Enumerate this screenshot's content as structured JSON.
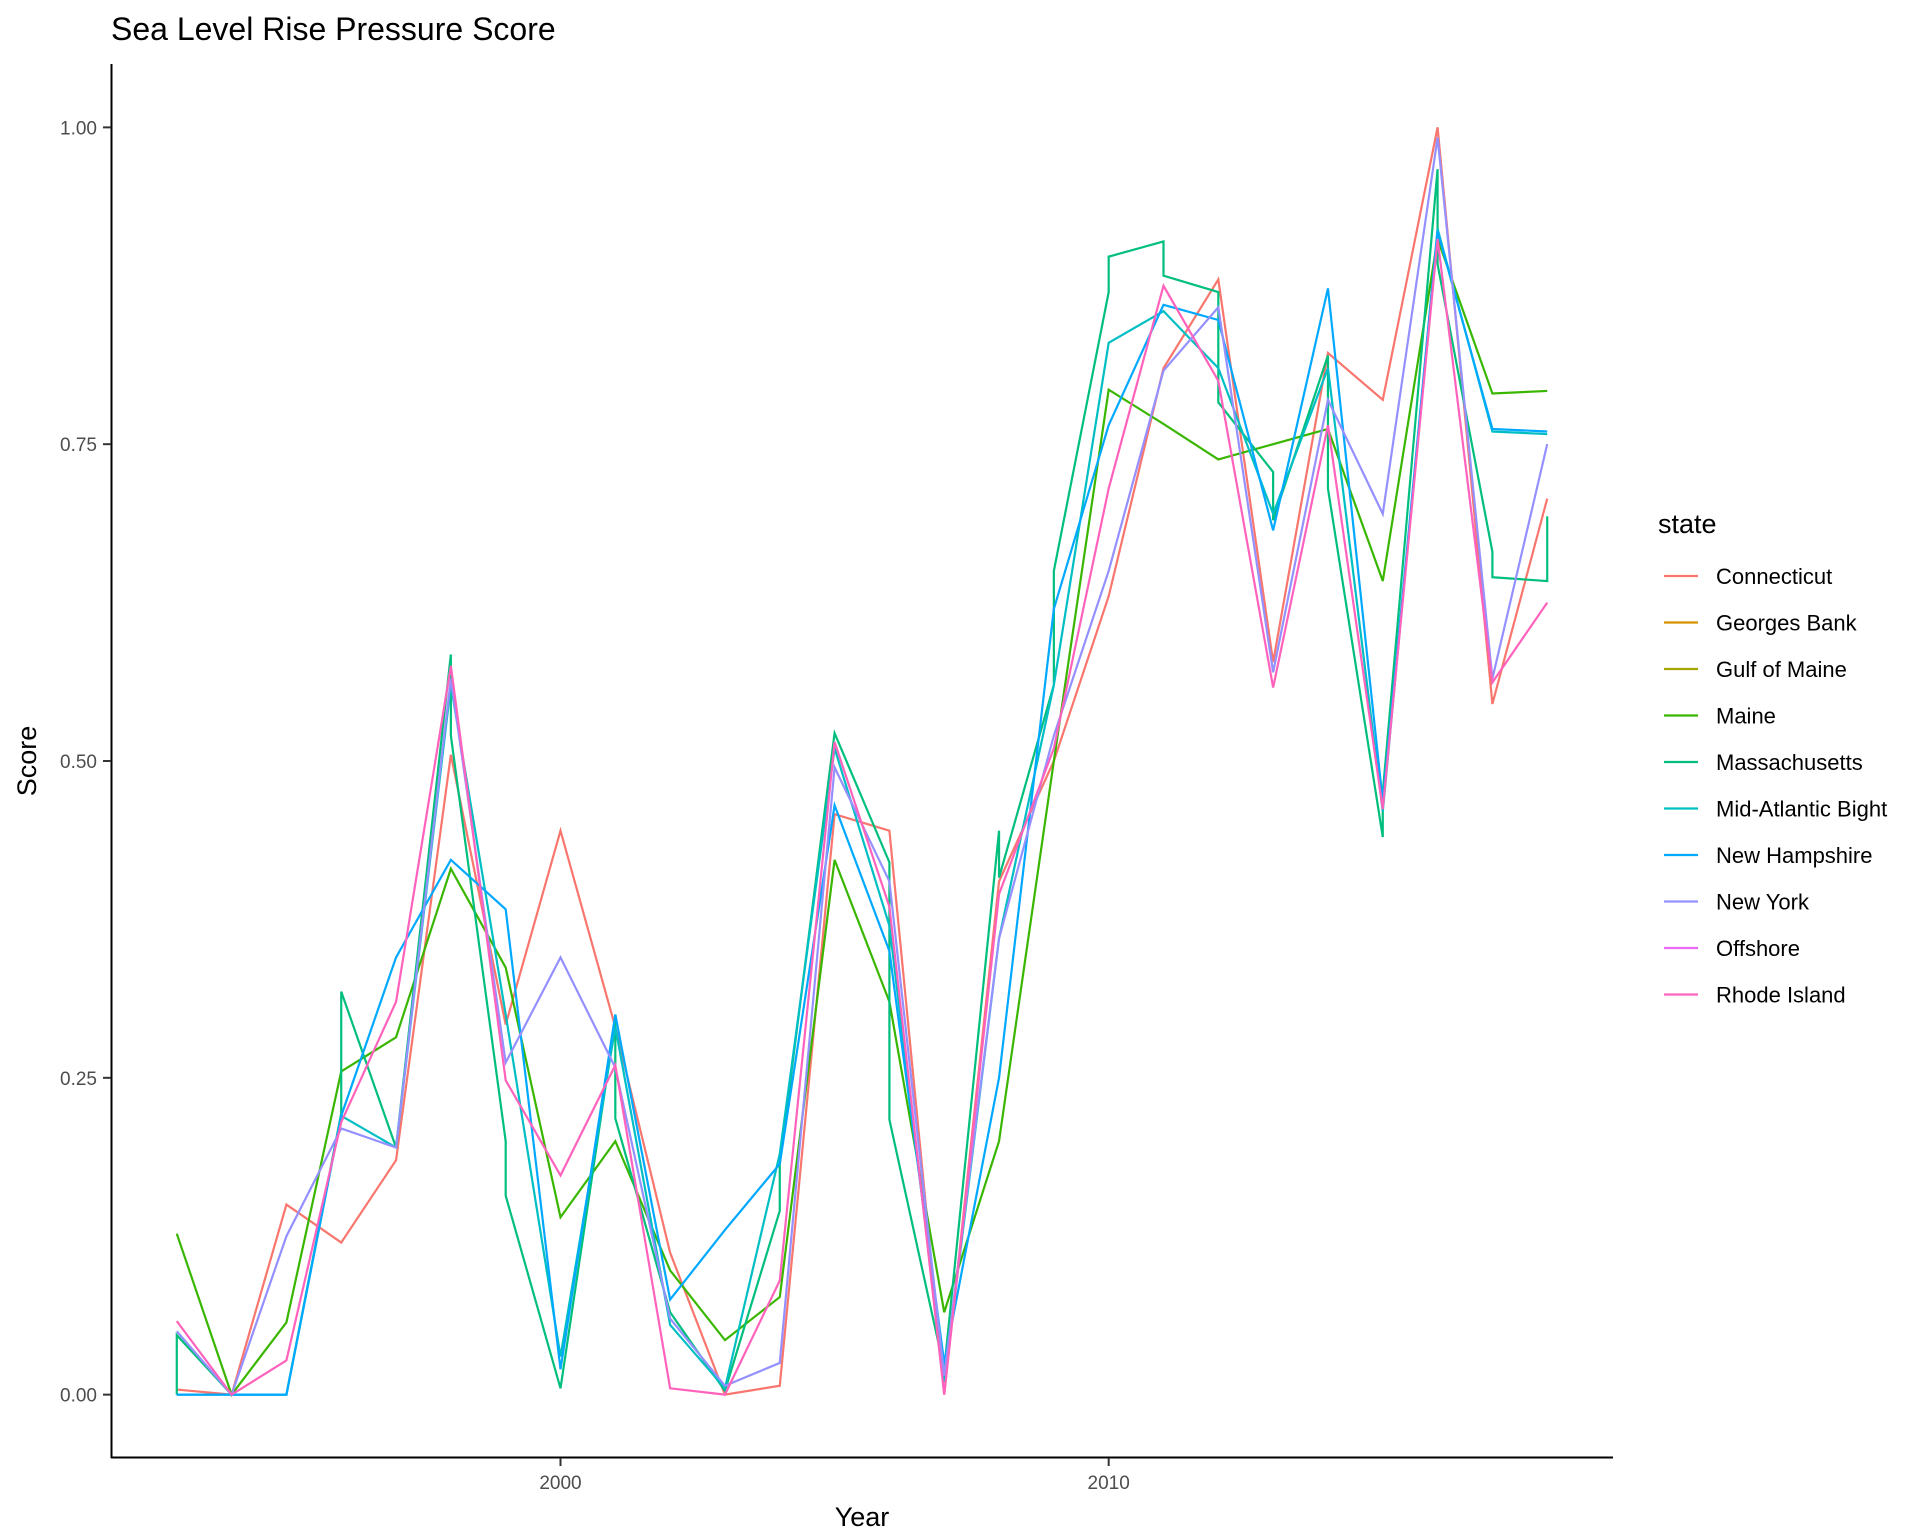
{
  "chart_data": {
    "type": "line",
    "title": "Sea Level Rise Pressure Score",
    "xlabel": "Year",
    "ylabel": "Score",
    "xlim": [
      1991.8,
      2019.2
    ],
    "ylim": [
      -0.05,
      1.05
    ],
    "x_ticks": [
      2000,
      2010
    ],
    "y_ticks": [
      0.0,
      0.25,
      0.5,
      0.75,
      1.0
    ],
    "y_tick_labels": [
      "0.00",
      "0.25",
      "0.50",
      "0.75",
      "1.00"
    ],
    "grid": false,
    "legend": {
      "title": "state",
      "position": "right"
    },
    "series": [
      {
        "name": "Connecticut",
        "color": "#F8766D",
        "points": [
          [
            1993,
            0.004
          ],
          [
            1994,
            0.0
          ],
          [
            1995,
            0.15
          ],
          [
            1996,
            0.12
          ],
          [
            1997,
            0.185
          ],
          [
            1998,
            0.505
          ],
          [
            1999,
            0.292
          ],
          [
            2000,
            0.445
          ],
          [
            2001,
            0.29
          ],
          [
            2002,
            0.112
          ],
          [
            2003,
            0.0
          ],
          [
            2004,
            0.007
          ],
          [
            2005,
            0.458
          ],
          [
            2006,
            0.445
          ],
          [
            2007,
            0.0
          ],
          [
            2008,
            0.405
          ],
          [
            2009,
            0.5
          ],
          [
            2010,
            0.63
          ],
          [
            2011,
            0.81
          ],
          [
            2012,
            0.88
          ],
          [
            2013,
            0.578
          ],
          [
            2014,
            0.822
          ],
          [
            2015,
            0.785
          ],
          [
            2016,
            1.0
          ],
          [
            2017,
            0.545
          ],
          [
            2018,
            0.707
          ]
        ]
      },
      {
        "name": "Georges Bank",
        "color": "#D89000",
        "points": []
      },
      {
        "name": "Gulf of Maine",
        "color": "#A3A500",
        "points": []
      },
      {
        "name": "Maine",
        "color": "#39B600",
        "points": [
          [
            1993,
            0.127
          ],
          [
            1994,
            0.0
          ],
          [
            1995,
            0.057
          ],
          [
            1996,
            0.255
          ],
          [
            1997,
            0.282
          ],
          [
            1998,
            0.415
          ],
          [
            1999,
            0.337
          ],
          [
            2000,
            0.14
          ],
          [
            2001,
            0.2
          ],
          [
            2002,
            0.098
          ],
          [
            2003,
            0.043
          ],
          [
            2004,
            0.077
          ],
          [
            2005,
            0.422
          ],
          [
            2006,
            0.31
          ],
          [
            2007,
            0.065
          ],
          [
            2008,
            0.2
          ],
          [
            2009,
            0.5
          ],
          [
            2010,
            0.793
          ],
          [
            2011,
            0.766
          ],
          [
            2012,
            0.738
          ],
          [
            2013,
            0.75
          ],
          [
            2014,
            0.762
          ],
          [
            2015,
            0.642
          ],
          [
            2016,
            0.912
          ],
          [
            2017,
            0.79
          ],
          [
            2018,
            0.792
          ]
        ]
      },
      {
        "name": "Massachusetts",
        "color": "#00BF7D",
        "points": [
          [
            1993,
            0.0
          ],
          [
            1993,
            0.047
          ],
          [
            1994,
            0.0
          ],
          [
            1995,
            0.0
          ],
          [
            1996,
            0.222
          ],
          [
            1996,
            0.318
          ],
          [
            1997,
            0.195
          ],
          [
            1998,
            0.584
          ],
          [
            1998,
            0.52
          ],
          [
            1999,
            0.2
          ],
          [
            1999,
            0.157
          ],
          [
            2000,
            0.005
          ],
          [
            2001,
            0.295
          ],
          [
            2001,
            0.218
          ],
          [
            2002,
            0.065
          ],
          [
            2003,
            0.003
          ],
          [
            2004,
            0.145
          ],
          [
            2004,
            0.182
          ],
          [
            2005,
            0.522
          ],
          [
            2006,
            0.42
          ],
          [
            2006,
            0.217
          ],
          [
            2007,
            0.02
          ],
          [
            2008,
            0.445
          ],
          [
            2008,
            0.408
          ],
          [
            2009,
            0.56
          ],
          [
            2009,
            0.65
          ],
          [
            2010,
            0.87
          ],
          [
            2010,
            0.898
          ],
          [
            2011,
            0.91
          ],
          [
            2011,
            0.883
          ],
          [
            2012,
            0.87
          ],
          [
            2012,
            0.783
          ],
          [
            2013,
            0.728
          ],
          [
            2013,
            0.69
          ],
          [
            2014,
            0.82
          ],
          [
            2014,
            0.715
          ],
          [
            2015,
            0.44
          ],
          [
            2015,
            0.475
          ],
          [
            2016,
            0.967
          ],
          [
            2016,
            0.892
          ],
          [
            2017,
            0.665
          ],
          [
            2017,
            0.645
          ],
          [
            2018,
            0.642
          ],
          [
            2018,
            0.693
          ]
        ]
      },
      {
        "name": "Mid-Atlantic Bight",
        "color": "#00BFC4",
        "points": [
          [
            1993,
            0.0
          ],
          [
            1994,
            0.0
          ],
          [
            1995,
            0.0
          ],
          [
            1996,
            0.22
          ],
          [
            1997,
            0.195
          ],
          [
            1998,
            0.56
          ],
          [
            1999,
            0.3
          ],
          [
            2000,
            0.03
          ],
          [
            2001,
            0.29
          ],
          [
            2002,
            0.055
          ],
          [
            2003,
            0.005
          ],
          [
            2004,
            0.19
          ],
          [
            2005,
            0.51
          ],
          [
            2006,
            0.37
          ],
          [
            2007,
            0.01
          ],
          [
            2008,
            0.36
          ],
          [
            2009,
            0.56
          ],
          [
            2010,
            0.83
          ],
          [
            2011,
            0.855
          ],
          [
            2012,
            0.81
          ],
          [
            2013,
            0.695
          ],
          [
            2014,
            0.81
          ],
          [
            2015,
            0.46
          ],
          [
            2016,
            0.92
          ],
          [
            2017,
            0.76
          ],
          [
            2018,
            0.758
          ]
        ]
      },
      {
        "name": "New Hampshire",
        "color": "#00A9FF",
        "points": [
          [
            1993,
            0.0
          ],
          [
            1994,
            0.0
          ],
          [
            1995,
            0.0
          ],
          [
            1996,
            0.22
          ],
          [
            1997,
            0.345
          ],
          [
            1998,
            0.422
          ],
          [
            1999,
            0.383
          ],
          [
            2000,
            0.02
          ],
          [
            2001,
            0.3
          ],
          [
            2002,
            0.075
          ],
          [
            2003,
            0.13
          ],
          [
            2004,
            0.182
          ],
          [
            2005,
            0.465
          ],
          [
            2006,
            0.35
          ],
          [
            2007,
            0.025
          ],
          [
            2008,
            0.25
          ],
          [
            2009,
            0.62
          ],
          [
            2010,
            0.765
          ],
          [
            2011,
            0.86
          ],
          [
            2012,
            0.848
          ],
          [
            2013,
            0.682
          ],
          [
            2014,
            0.873
          ],
          [
            2015,
            0.468
          ],
          [
            2016,
            0.918
          ],
          [
            2017,
            0.762
          ],
          [
            2018,
            0.76
          ]
        ]
      },
      {
        "name": "New York",
        "color": "#9590FF",
        "points": [
          [
            1993,
            0.05
          ],
          [
            1994,
            0.0
          ],
          [
            1995,
            0.125
          ],
          [
            1996,
            0.21
          ],
          [
            1997,
            0.195
          ],
          [
            1998,
            0.565
          ],
          [
            1999,
            0.262
          ],
          [
            2000,
            0.345
          ],
          [
            2001,
            0.258
          ],
          [
            2002,
            0.06
          ],
          [
            2003,
            0.007
          ],
          [
            2004,
            0.025
          ],
          [
            2005,
            0.495
          ],
          [
            2006,
            0.405
          ],
          [
            2007,
            0.015
          ],
          [
            2008,
            0.36
          ],
          [
            2009,
            0.52
          ],
          [
            2010,
            0.65
          ],
          [
            2011,
            0.808
          ],
          [
            2012,
            0.858
          ],
          [
            2013,
            0.57
          ],
          [
            2014,
            0.785
          ],
          [
            2015,
            0.695
          ],
          [
            2016,
            0.992
          ],
          [
            2017,
            0.565
          ],
          [
            2018,
            0.75
          ]
        ]
      },
      {
        "name": "Offshore",
        "color": "#E76BF3",
        "points": []
      },
      {
        "name": "Rhode Island",
        "color": "#FF62BC",
        "points": [
          [
            1993,
            0.058
          ],
          [
            1994,
            0.0
          ],
          [
            1995,
            0.027
          ],
          [
            1996,
            0.215
          ],
          [
            1997,
            0.31
          ],
          [
            1998,
            0.575
          ],
          [
            1999,
            0.248
          ],
          [
            2000,
            0.173
          ],
          [
            2001,
            0.26
          ],
          [
            2002,
            0.005
          ],
          [
            2003,
            0.0
          ],
          [
            2004,
            0.09
          ],
          [
            2005,
            0.515
          ],
          [
            2006,
            0.385
          ],
          [
            2007,
            0.0
          ],
          [
            2008,
            0.395
          ],
          [
            2009,
            0.51
          ],
          [
            2010,
            0.715
          ],
          [
            2011,
            0.875
          ],
          [
            2012,
            0.8
          ],
          [
            2013,
            0.558
          ],
          [
            2014,
            0.765
          ],
          [
            2015,
            0.462
          ],
          [
            2016,
            0.912
          ],
          [
            2017,
            0.562
          ],
          [
            2018,
            0.625
          ]
        ]
      }
    ]
  }
}
